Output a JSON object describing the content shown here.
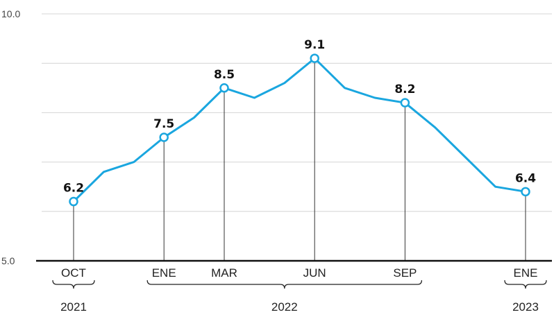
{
  "chart_data": {
    "type": "line",
    "ylim": [
      5.0,
      10.0
    ],
    "y_ticks": [
      "10.0",
      "5.0"
    ],
    "grid": true,
    "series": [
      {
        "color": "#1aa6df",
        "points": [
          {
            "x": "2021-10",
            "y": 6.2
          },
          {
            "x": "2021-11",
            "y": 6.8
          },
          {
            "x": "2021-12",
            "y": 7.0
          },
          {
            "x": "2022-01",
            "y": 7.5
          },
          {
            "x": "2022-02",
            "y": 7.9
          },
          {
            "x": "2022-03",
            "y": 8.5
          },
          {
            "x": "2022-04",
            "y": 8.3
          },
          {
            "x": "2022-05",
            "y": 8.6
          },
          {
            "x": "2022-06",
            "y": 9.1
          },
          {
            "x": "2022-07",
            "y": 8.5
          },
          {
            "x": "2022-08",
            "y": 8.3
          },
          {
            "x": "2022-09",
            "y": 8.2
          },
          {
            "x": "2022-10",
            "y": 7.7
          },
          {
            "x": "2022-11",
            "y": 7.1
          },
          {
            "x": "2022-12",
            "y": 6.5
          },
          {
            "x": "2023-01",
            "y": 6.4
          }
        ]
      }
    ],
    "highlighted": [
      {
        "x": "2021-10",
        "y": 6.2,
        "label": "6.2",
        "month_label": "OCT"
      },
      {
        "x": "2022-01",
        "y": 7.5,
        "label": "7.5",
        "month_label": "ENE"
      },
      {
        "x": "2022-03",
        "y": 8.5,
        "label": "8.5",
        "month_label": "MAR"
      },
      {
        "x": "2022-06",
        "y": 9.1,
        "label": "9.1",
        "month_label": "JUN"
      },
      {
        "x": "2022-09",
        "y": 8.2,
        "label": "8.2",
        "month_label": "SEP"
      },
      {
        "x": "2023-01",
        "y": 6.4,
        "label": "6.4",
        "month_label": "ENE"
      }
    ],
    "years": [
      {
        "label": "2021",
        "from": "2021-10",
        "to": "2021-10"
      },
      {
        "label": "2022",
        "from": "2022-01",
        "to": "2022-09"
      },
      {
        "label": "2023",
        "from": "2023-01",
        "to": "2023-01"
      }
    ]
  }
}
